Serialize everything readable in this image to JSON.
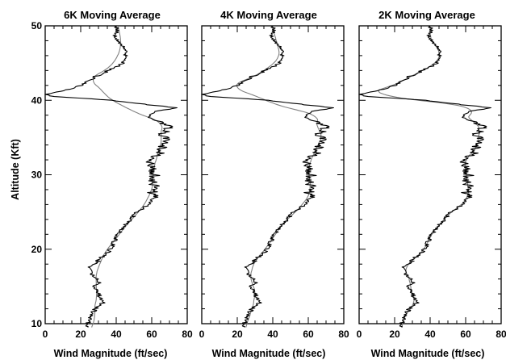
{
  "chart_data": [
    {
      "type": "line",
      "title": "6K Moving Average",
      "xlabel": "Wind Magnitude (ft/sec)",
      "ylabel": "Altitude (Kft)",
      "xlim": [
        0,
        80
      ],
      "ylim": [
        10,
        50
      ],
      "xticks": [
        "0",
        "20",
        "40",
        "60",
        "80"
      ],
      "yticks": [
        "10",
        "20",
        "30",
        "40",
        "50"
      ],
      "grid": false,
      "smooth_window_kft": 6
    },
    {
      "type": "line",
      "title": "4K Moving Average",
      "xlabel": "Wind Magnitude (ft/sec)",
      "ylabel": "",
      "xlim": [
        0,
        80
      ],
      "ylim": [
        10,
        50
      ],
      "xticks": [
        "0",
        "20",
        "40",
        "60",
        "80"
      ],
      "yticks": [],
      "grid": false,
      "smooth_window_kft": 4
    },
    {
      "type": "line",
      "title": "2K Moving Average",
      "xlabel": "Wind Magnitude (ft/sec)",
      "ylabel": "",
      "xlim": [
        0,
        80
      ],
      "ylim": [
        10,
        50
      ],
      "xticks": [
        "0",
        "20",
        "40",
        "60",
        "80"
      ],
      "yticks": [],
      "grid": false,
      "smooth_window_kft": 2
    }
  ],
  "profile": {
    "raw_color": "#000000",
    "smooth_color": "#808080",
    "points": [
      [
        9.5,
        24
      ],
      [
        10.0,
        24
      ],
      [
        10.5,
        25
      ],
      [
        11.0,
        26
      ],
      [
        11.5,
        27
      ],
      [
        12.0,
        28
      ],
      [
        12.5,
        31
      ],
      [
        13.0,
        33
      ],
      [
        13.5,
        31
      ],
      [
        14.0,
        30
      ],
      [
        14.5,
        29
      ],
      [
        15.0,
        28
      ],
      [
        15.5,
        30
      ],
      [
        16.0,
        29
      ],
      [
        16.5,
        27
      ],
      [
        17.0,
        25
      ],
      [
        17.5,
        25
      ],
      [
        18.0,
        28
      ],
      [
        18.5,
        30
      ],
      [
        19.0,
        32
      ],
      [
        19.5,
        35
      ],
      [
        20.0,
        37
      ],
      [
        20.5,
        38
      ],
      [
        21.0,
        39
      ],
      [
        21.5,
        40
      ],
      [
        22.0,
        41
      ],
      [
        22.5,
        43
      ],
      [
        23.0,
        45
      ],
      [
        23.5,
        46
      ],
      [
        24.0,
        48
      ],
      [
        24.5,
        50
      ],
      [
        25.0,
        52
      ],
      [
        25.5,
        55
      ],
      [
        26.0,
        58
      ],
      [
        26.5,
        59
      ],
      [
        27.0,
        61
      ],
      [
        27.5,
        60
      ],
      [
        28.0,
        61
      ],
      [
        28.5,
        62
      ],
      [
        29.0,
        60
      ],
      [
        29.5,
        61
      ],
      [
        30.0,
        62
      ],
      [
        30.5,
        60
      ],
      [
        31.0,
        60
      ],
      [
        31.5,
        59
      ],
      [
        32.0,
        60
      ],
      [
        32.5,
        63
      ],
      [
        33.0,
        65
      ],
      [
        33.5,
        66
      ],
      [
        34.0,
        67
      ],
      [
        34.5,
        68
      ],
      [
        35.0,
        67
      ],
      [
        35.5,
        66
      ],
      [
        36.0,
        68
      ],
      [
        36.5,
        70
      ],
      [
        37.0,
        66
      ],
      [
        37.5,
        60
      ],
      [
        38.0,
        58
      ],
      [
        38.5,
        63
      ],
      [
        39.0,
        73
      ],
      [
        39.5,
        55
      ],
      [
        40.0,
        38
      ],
      [
        40.5,
        5
      ],
      [
        40.8,
        1
      ],
      [
        41.0,
        5
      ],
      [
        41.5,
        14
      ],
      [
        42.0,
        21
      ],
      [
        42.5,
        24
      ],
      [
        43.0,
        27
      ],
      [
        43.5,
        31
      ],
      [
        44.0,
        36
      ],
      [
        44.5,
        40
      ],
      [
        45.0,
        44
      ],
      [
        45.5,
        46
      ],
      [
        46.0,
        45
      ],
      [
        46.5,
        47
      ],
      [
        47.0,
        45
      ],
      [
        47.5,
        42
      ],
      [
        48.0,
        41
      ],
      [
        48.5,
        39
      ],
      [
        49.0,
        40
      ],
      [
        49.5,
        41
      ],
      [
        50.0,
        40
      ]
    ]
  }
}
